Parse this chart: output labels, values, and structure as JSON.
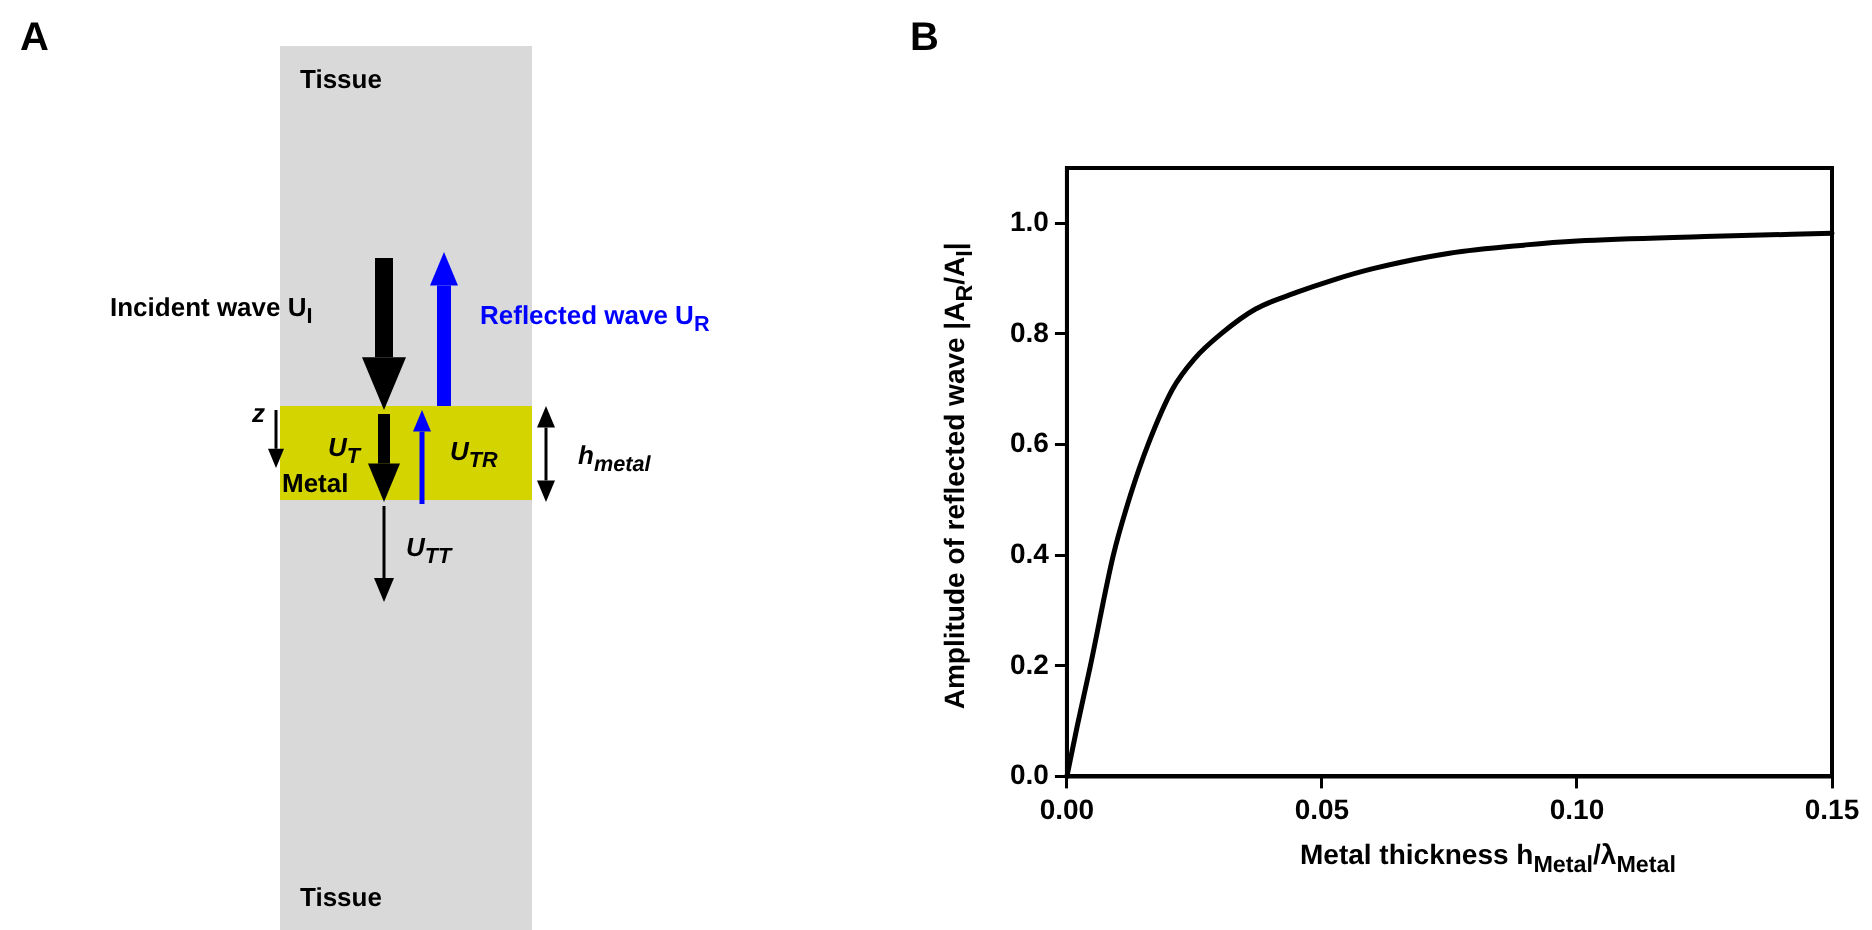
{
  "chart_data": [
    {
      "type": "other",
      "title": "A",
      "annotations": [
        "Tissue",
        "Incident wave U$_{I}$",
        "Reflected wave U$_{R}$",
        "z",
        "U$_{T}$",
        "Metal",
        "U$_{TR}$",
        "h$_{metal}$",
        "U$_{TT}$",
        "Tissue"
      ]
    },
    {
      "type": "line",
      "title": "B",
      "xlabel": "Metal thickness h$_{Metal}$/λ$_{Metal}$",
      "ylabel": "Amplitude of reflected wave |A$_{R}$/A$_{I}$|",
      "x": [
        0,
        0.002,
        0.0046,
        0.0091,
        0.0125,
        0.0159,
        0.0207,
        0.025,
        0.0302,
        0.037,
        0.045,
        0.052,
        0.06,
        0.075,
        0.09,
        0.1,
        0.125,
        0.15
      ],
      "series": [
        {
          "color": "#000000",
          "values": [
            0,
            0.09,
            0.2,
            0.4,
            0.51,
            0.6,
            0.7,
            0.755,
            0.8,
            0.845,
            0.875,
            0.897,
            0.918,
            0.946,
            0.961,
            0.968,
            0.976,
            0.982
          ]
        }
      ],
      "xlim": [
        0,
        0.15
      ],
      "xticks": [
        {
          "value": 0,
          "label": "0.00"
        },
        {
          "value": 0.05,
          "label": "0.05"
        },
        {
          "value": 0.1,
          "label": "0.10"
        },
        0.15
      ],
      "ylim": [
        0,
        1.1
      ],
      "yticks": [
        {
          "value": 0,
          "label": "0.0"
        },
        0.2,
        0.4,
        0.6,
        0.8,
        {
          "value": 1,
          "label": "1.0"
        }
      ],
      "grid": false,
      "legend": false,
      "marker": "none",
      "line_style": "solid"
    }
  ]
}
